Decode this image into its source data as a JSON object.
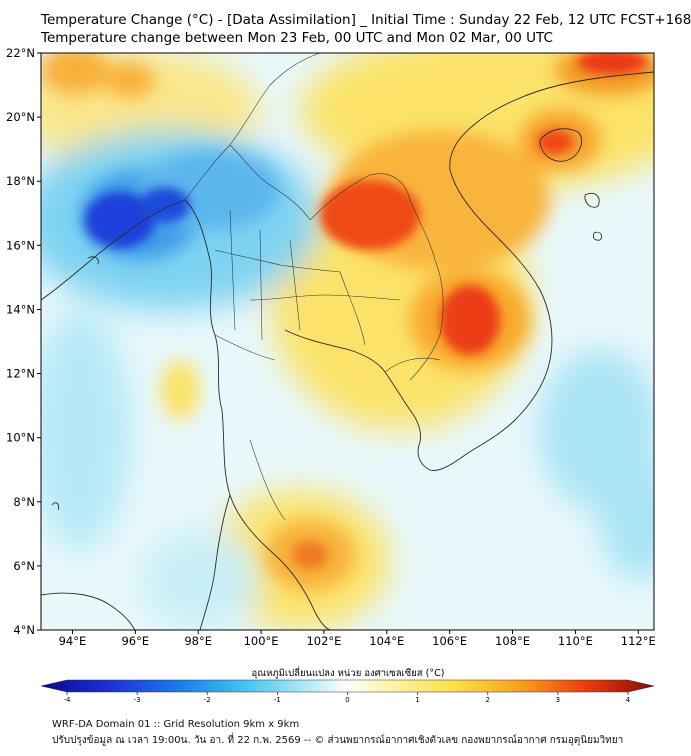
{
  "title_line1": "Temperature Change (°C) - [Data Assimilation] _ Initial Time : Sunday 22 Feb, 12 UTC FCST+168",
  "title_line2": "Temperature change between Mon 23 Feb, 00 UTC and Mon 02 Mar, 00 UTC",
  "map": {
    "lat_range": [
      4,
      22
    ],
    "lon_range": [
      93,
      112.5
    ],
    "lat_ticks": [
      {
        "value": 22,
        "label": "22°N"
      },
      {
        "value": 20,
        "label": "20°N"
      },
      {
        "value": 18,
        "label": "18°N"
      },
      {
        "value": 16,
        "label": "16°N"
      },
      {
        "value": 14,
        "label": "14°N"
      },
      {
        "value": 12,
        "label": "12°N"
      },
      {
        "value": 10,
        "label": "10°N"
      },
      {
        "value": 8,
        "label": "8°N"
      },
      {
        "value": 6,
        "label": "6°N"
      },
      {
        "value": 4,
        "label": "4°N"
      }
    ],
    "lon_ticks": [
      {
        "value": 94,
        "label": "94°E"
      },
      {
        "value": 96,
        "label": "96°E"
      },
      {
        "value": 98,
        "label": "98°E"
      },
      {
        "value": 100,
        "label": "100°E"
      },
      {
        "value": 102,
        "label": "102°E"
      },
      {
        "value": 104,
        "label": "104°E"
      },
      {
        "value": 106,
        "label": "106°E"
      },
      {
        "value": 108,
        "label": "108°E"
      },
      {
        "value": 110,
        "label": "110°E"
      },
      {
        "value": 112,
        "label": "112°E"
      }
    ]
  },
  "colorbar": {
    "label": "อุณหภูมิเปลี่ยนแปลง หน่วย องศาเซลเซียส (°C)",
    "min": -4,
    "max": 4,
    "ticks": [
      "-4",
      "-3",
      "-2",
      "-1",
      "0",
      "1",
      "2",
      "3",
      "4"
    ]
  },
  "footer_line1": "WRF-DA Domain 01 :: Grid Resolution 9km x 9km",
  "footer_line2": "ปรับปรุงข้อมูล ณ เวลา 19:00น. วัน อา. ที่ 22 ก.พ. 2569 -- © ส่วนพยากรณ์อากาศเชิงตัวเลข กองพยากรณ์อากาศ กรมอุตุนิยมวิทยา"
}
